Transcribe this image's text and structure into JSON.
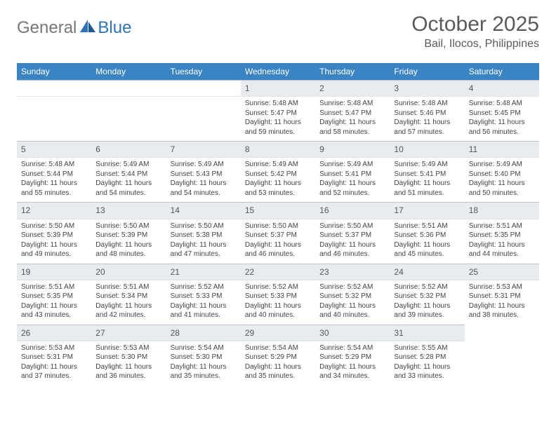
{
  "logo": {
    "text1": "General",
    "text2": "Blue"
  },
  "title": "October 2025",
  "subtitle": "Bail, Ilocos, Philippines",
  "colors": {
    "header_bg": "#3b84c4",
    "header_text": "#ffffff",
    "daynum_bg": "#e9ecef",
    "daynum_border": "#b8c4d0",
    "text": "#444444",
    "title_text": "#5a5a5a",
    "logo_gray": "#777777",
    "logo_blue": "#2e74b5"
  },
  "weekdays": [
    "Sunday",
    "Monday",
    "Tuesday",
    "Wednesday",
    "Thursday",
    "Friday",
    "Saturday"
  ],
  "blanks_before": 3,
  "days": [
    {
      "n": "1",
      "sr": "5:48 AM",
      "ss": "5:47 PM",
      "dl": "11 hours and 59 minutes."
    },
    {
      "n": "2",
      "sr": "5:48 AM",
      "ss": "5:47 PM",
      "dl": "11 hours and 58 minutes."
    },
    {
      "n": "3",
      "sr": "5:48 AM",
      "ss": "5:46 PM",
      "dl": "11 hours and 57 minutes."
    },
    {
      "n": "4",
      "sr": "5:48 AM",
      "ss": "5:45 PM",
      "dl": "11 hours and 56 minutes."
    },
    {
      "n": "5",
      "sr": "5:48 AM",
      "ss": "5:44 PM",
      "dl": "11 hours and 55 minutes."
    },
    {
      "n": "6",
      "sr": "5:49 AM",
      "ss": "5:44 PM",
      "dl": "11 hours and 54 minutes."
    },
    {
      "n": "7",
      "sr": "5:49 AM",
      "ss": "5:43 PM",
      "dl": "11 hours and 54 minutes."
    },
    {
      "n": "8",
      "sr": "5:49 AM",
      "ss": "5:42 PM",
      "dl": "11 hours and 53 minutes."
    },
    {
      "n": "9",
      "sr": "5:49 AM",
      "ss": "5:41 PM",
      "dl": "11 hours and 52 minutes."
    },
    {
      "n": "10",
      "sr": "5:49 AM",
      "ss": "5:41 PM",
      "dl": "11 hours and 51 minutes."
    },
    {
      "n": "11",
      "sr": "5:49 AM",
      "ss": "5:40 PM",
      "dl": "11 hours and 50 minutes."
    },
    {
      "n": "12",
      "sr": "5:50 AM",
      "ss": "5:39 PM",
      "dl": "11 hours and 49 minutes."
    },
    {
      "n": "13",
      "sr": "5:50 AM",
      "ss": "5:39 PM",
      "dl": "11 hours and 48 minutes."
    },
    {
      "n": "14",
      "sr": "5:50 AM",
      "ss": "5:38 PM",
      "dl": "11 hours and 47 minutes."
    },
    {
      "n": "15",
      "sr": "5:50 AM",
      "ss": "5:37 PM",
      "dl": "11 hours and 46 minutes."
    },
    {
      "n": "16",
      "sr": "5:50 AM",
      "ss": "5:37 PM",
      "dl": "11 hours and 46 minutes."
    },
    {
      "n": "17",
      "sr": "5:51 AM",
      "ss": "5:36 PM",
      "dl": "11 hours and 45 minutes."
    },
    {
      "n": "18",
      "sr": "5:51 AM",
      "ss": "5:35 PM",
      "dl": "11 hours and 44 minutes."
    },
    {
      "n": "19",
      "sr": "5:51 AM",
      "ss": "5:35 PM",
      "dl": "11 hours and 43 minutes."
    },
    {
      "n": "20",
      "sr": "5:51 AM",
      "ss": "5:34 PM",
      "dl": "11 hours and 42 minutes."
    },
    {
      "n": "21",
      "sr": "5:52 AM",
      "ss": "5:33 PM",
      "dl": "11 hours and 41 minutes."
    },
    {
      "n": "22",
      "sr": "5:52 AM",
      "ss": "5:33 PM",
      "dl": "11 hours and 40 minutes."
    },
    {
      "n": "23",
      "sr": "5:52 AM",
      "ss": "5:32 PM",
      "dl": "11 hours and 40 minutes."
    },
    {
      "n": "24",
      "sr": "5:52 AM",
      "ss": "5:32 PM",
      "dl": "11 hours and 39 minutes."
    },
    {
      "n": "25",
      "sr": "5:53 AM",
      "ss": "5:31 PM",
      "dl": "11 hours and 38 minutes."
    },
    {
      "n": "26",
      "sr": "5:53 AM",
      "ss": "5:31 PM",
      "dl": "11 hours and 37 minutes."
    },
    {
      "n": "27",
      "sr": "5:53 AM",
      "ss": "5:30 PM",
      "dl": "11 hours and 36 minutes."
    },
    {
      "n": "28",
      "sr": "5:54 AM",
      "ss": "5:30 PM",
      "dl": "11 hours and 35 minutes."
    },
    {
      "n": "29",
      "sr": "5:54 AM",
      "ss": "5:29 PM",
      "dl": "11 hours and 35 minutes."
    },
    {
      "n": "30",
      "sr": "5:54 AM",
      "ss": "5:29 PM",
      "dl": "11 hours and 34 minutes."
    },
    {
      "n": "31",
      "sr": "5:55 AM",
      "ss": "5:28 PM",
      "dl": "11 hours and 33 minutes."
    }
  ],
  "labels": {
    "sunrise": "Sunrise:",
    "sunset": "Sunset:",
    "daylight": "Daylight:"
  }
}
